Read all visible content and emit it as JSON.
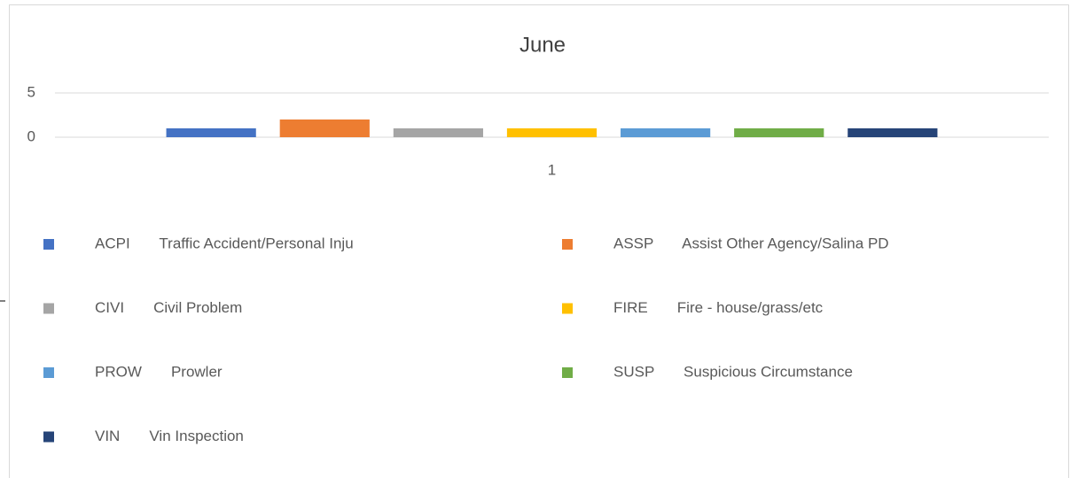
{
  "chart_data": {
    "type": "bar",
    "title": "June",
    "categories": [
      "1"
    ],
    "series": [
      {
        "name": "ACPI       Traffic Accident/Personal Inju",
        "color": "#4472c4",
        "values": [
          1
        ]
      },
      {
        "name": "ASSP       Assist Other Agency/Salina PD",
        "color": "#ed7d31",
        "values": [
          2
        ]
      },
      {
        "name": "CIVI       Civil Problem",
        "color": "#a5a5a5",
        "values": [
          1
        ]
      },
      {
        "name": "FIRE       Fire - house/grass/etc",
        "color": "#ffc000",
        "values": [
          1
        ]
      },
      {
        "name": "PROW       Prowler",
        "color": "#5b9bd5",
        "values": [
          1
        ]
      },
      {
        "name": "SUSP       Suspicious Circumstance",
        "color": "#70ad47",
        "values": [
          1
        ]
      },
      {
        "name": "VIN       Vin Inspection",
        "color": "#264478",
        "values": [
          1
        ]
      }
    ],
    "ylim": [
      0,
      5
    ],
    "yticks": [
      0,
      5
    ],
    "grid": true,
    "legend": "bottom"
  }
}
